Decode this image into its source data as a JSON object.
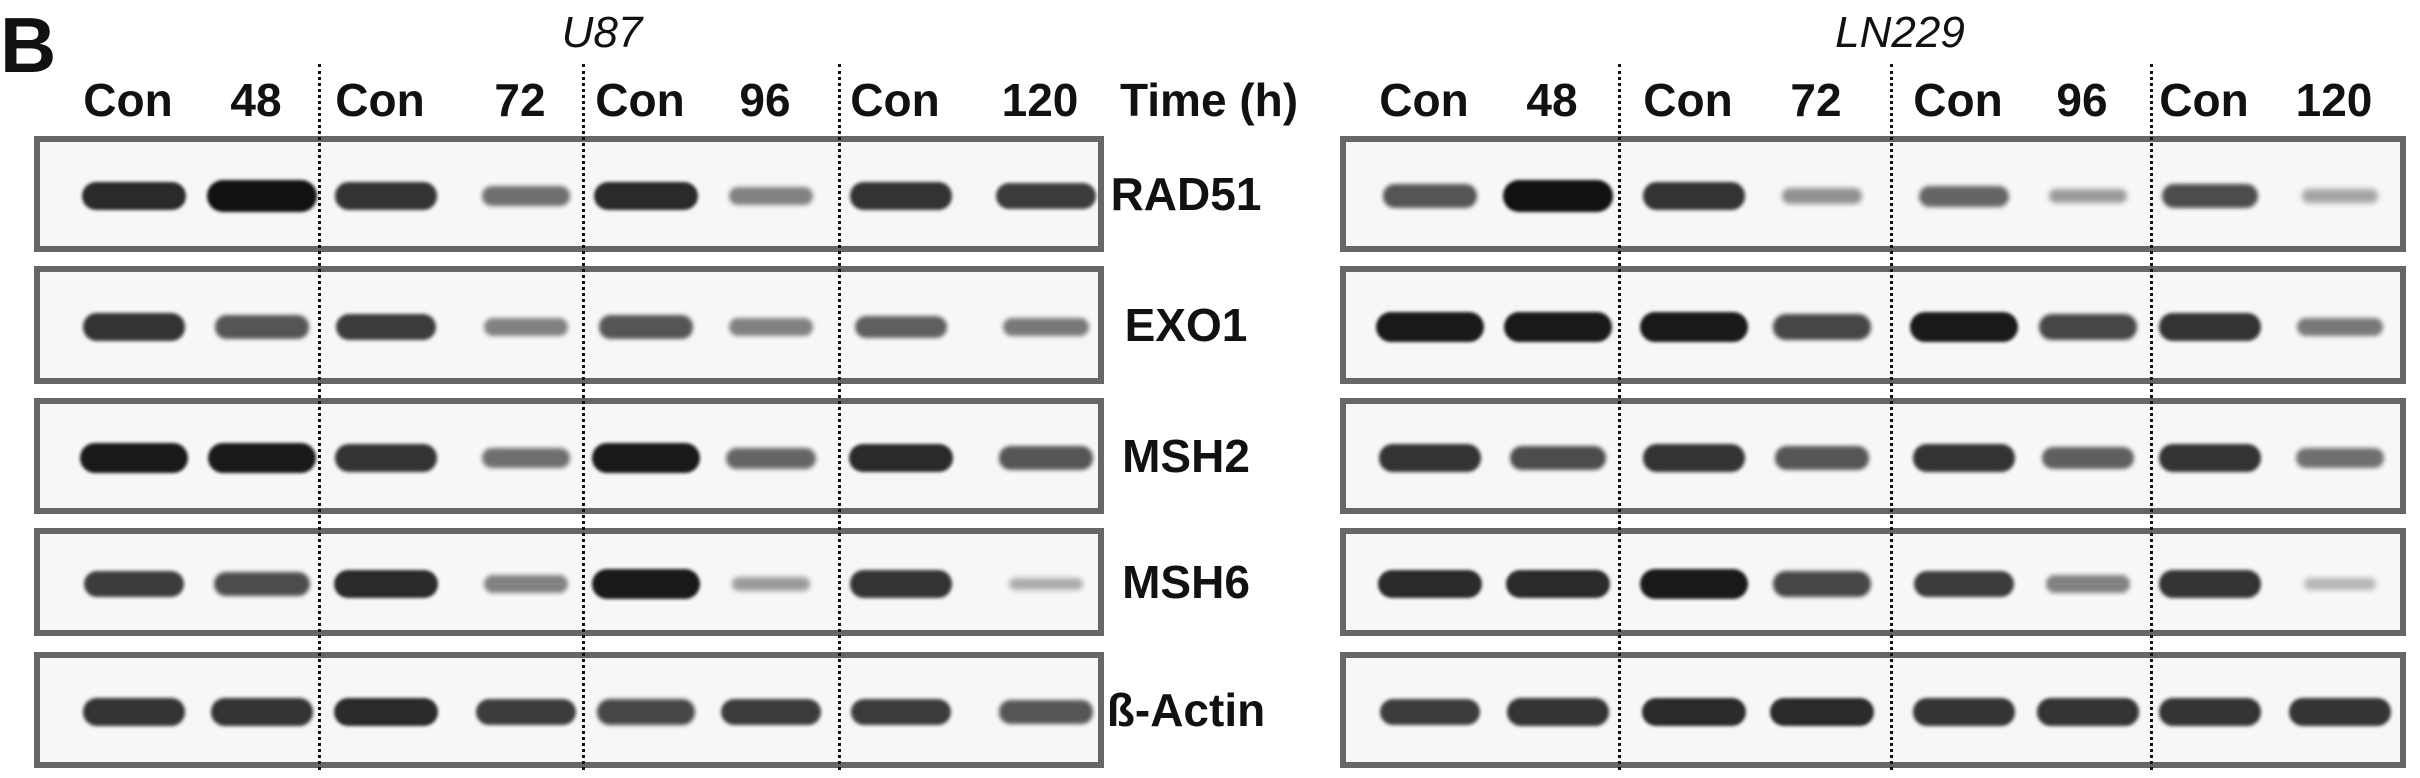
{
  "figure": {
    "panel_letter": "B",
    "time_label": "Time (h)",
    "cell_lines": [
      {
        "name": "U87",
        "lanes": [
          "Con",
          "48",
          "Con",
          "72",
          "Con",
          "96",
          "Con",
          "120"
        ]
      },
      {
        "name": "LN229",
        "lanes": [
          "Con",
          "48",
          "Con",
          "72",
          "Con",
          "96",
          "Con",
          "120"
        ]
      }
    ],
    "proteins": [
      "RAD51",
      "EXO1",
      "MSH2",
      "MSH6",
      "ß-Actin"
    ],
    "band_intensity": {
      "U87": [
        [
          0.85,
          1.0,
          0.8,
          0.45,
          0.85,
          0.35,
          0.8,
          0.75
        ],
        [
          0.8,
          0.6,
          0.75,
          0.35,
          0.6,
          0.35,
          0.55,
          0.4
        ],
        [
          0.95,
          0.95,
          0.8,
          0.45,
          0.95,
          0.5,
          0.85,
          0.6
        ],
        [
          0.75,
          0.65,
          0.85,
          0.35,
          0.95,
          0.2,
          0.8,
          0.1
        ],
        [
          0.8,
          0.8,
          0.85,
          0.75,
          0.7,
          0.75,
          0.75,
          0.6
        ]
      ],
      "LN229": [
        [
          0.6,
          1.0,
          0.8,
          0.25,
          0.5,
          0.2,
          0.65,
          0.15
        ],
        [
          0.95,
          0.95,
          0.95,
          0.7,
          0.95,
          0.7,
          0.8,
          0.4
        ],
        [
          0.8,
          0.65,
          0.8,
          0.6,
          0.8,
          0.55,
          0.8,
          0.45
        ],
        [
          0.85,
          0.85,
          0.95,
          0.7,
          0.75,
          0.35,
          0.8,
          0.05
        ],
        [
          0.75,
          0.8,
          0.85,
          0.85,
          0.8,
          0.8,
          0.8,
          0.8
        ]
      ]
    }
  }
}
